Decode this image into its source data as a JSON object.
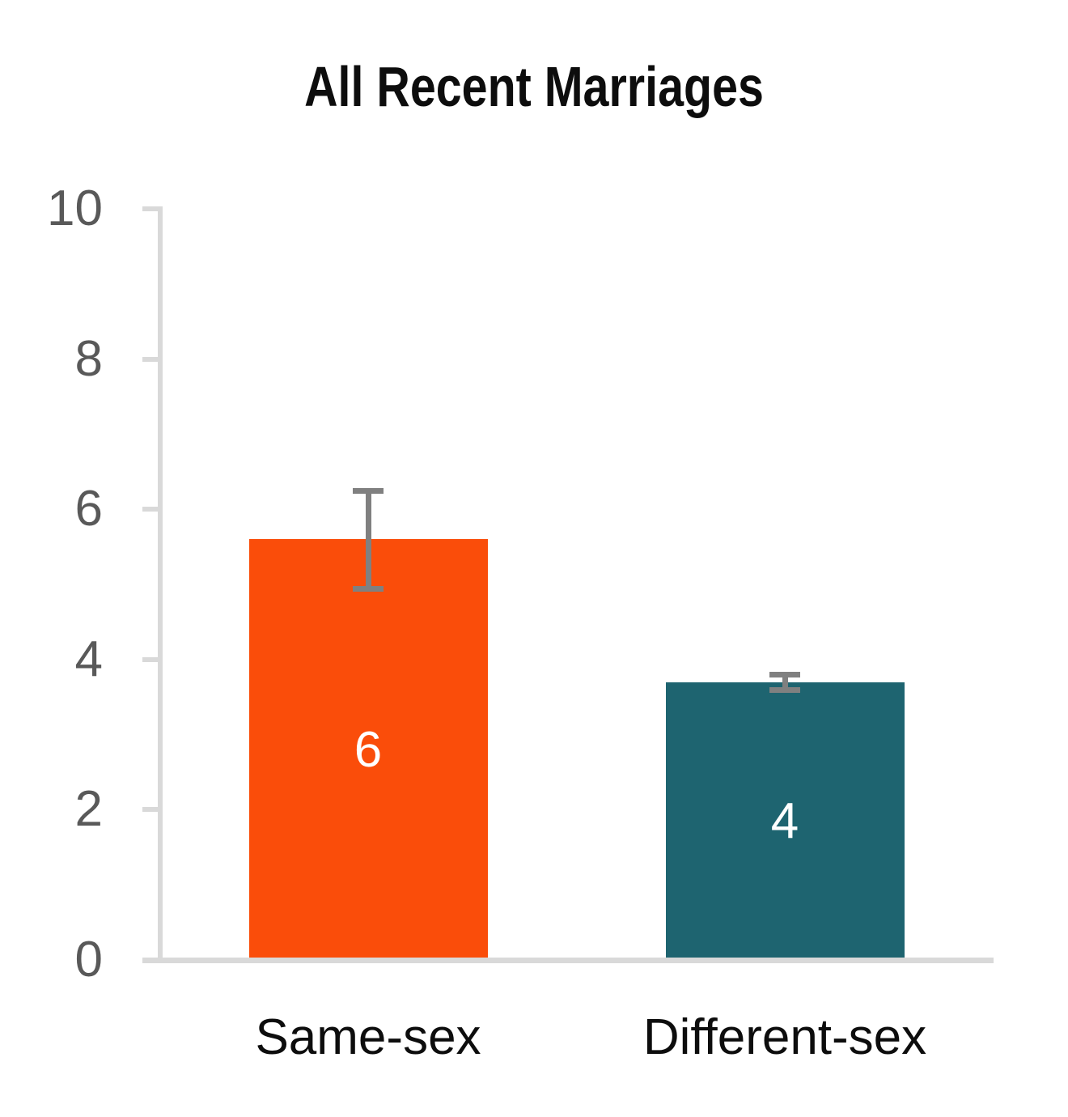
{
  "chart_data": {
    "type": "bar",
    "title": "All Recent Marriages",
    "categories": [
      "Same-sex",
      "Different-sex"
    ],
    "values": [
      5.6,
      3.7
    ],
    "bar_labels": [
      "6",
      "4"
    ],
    "error_bars": [
      {
        "low": 4.95,
        "high": 6.25
      },
      {
        "low": 3.6,
        "high": 3.8
      }
    ],
    "bar_colors": [
      "#fa4d0a",
      "#1e6470"
    ],
    "value_label_color": "#ffffff",
    "ylim": [
      0,
      10
    ],
    "yticks": [
      0,
      2,
      4,
      6,
      8,
      10
    ],
    "xlabel": "",
    "ylabel": "",
    "grid": false,
    "legend": false,
    "axis_color": "#d9d9d9",
    "tick_label_color": "#595959",
    "error_bar_color": "#808080",
    "title_color": "#0d0d0d",
    "category_label_color": "#0d0d0d"
  }
}
